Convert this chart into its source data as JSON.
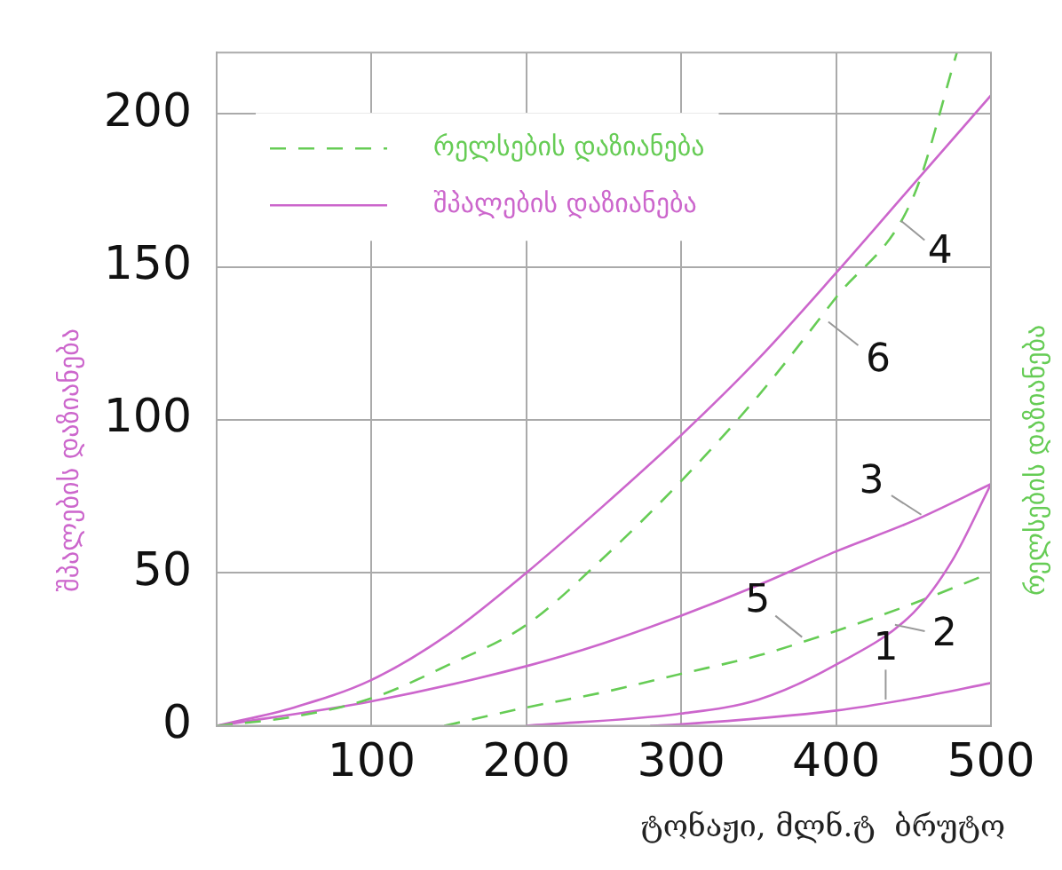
{
  "chart_data": {
    "type": "line",
    "xlabel": "ტონაჟი, მლნ.ტ  ბრუტო",
    "ylabel": "შპალების დაზიანება",
    "y2label": "რელსების დაზიანება",
    "xlim": [
      0,
      500
    ],
    "xticks": [
      100,
      200,
      300,
      400,
      500
    ],
    "ylim": [
      0,
      220
    ],
    "yticks": [
      0,
      50,
      100,
      150,
      200
    ],
    "grid": true,
    "legend": "top left",
    "series": [
      {
        "name": "რელსების დაზიანება",
        "color": "#66cc55",
        "line_style": "dashed",
        "x": [
          0,
          50,
          100,
          150,
          200,
          250,
          300,
          350,
          400,
          450,
          478
        ],
        "values": [
          0,
          3,
          9,
          20,
          33,
          55,
          80,
          108,
          140,
          173,
          220
        ]
      },
      {
        "name": "შპალების დაზიანება",
        "color": "#cc66cc",
        "line_style": "solid",
        "x": [
          0,
          50,
          100,
          150,
          200,
          250,
          300,
          350,
          400,
          450,
          500
        ],
        "values": [
          0,
          6,
          15,
          30,
          50,
          72,
          95,
          120,
          148,
          177,
          206
        ]
      },
      {
        "color": "#cc66cc",
        "line_style": "solid",
        "x": [
          0,
          100,
          200,
          250,
          300,
          350,
          400,
          450,
          500
        ],
        "values": [
          0,
          8,
          19.5,
          27,
          36,
          46,
          57,
          67,
          79
        ]
      },
      {
        "color": "#cc66cc",
        "line_style": "solid",
        "x": [
          200,
          300,
          350,
          400,
          450,
          475,
          500
        ],
        "values": [
          0,
          4,
          8.6,
          20,
          37,
          54,
          79
        ]
      },
      {
        "color": "#cc66cc",
        "line_style": "solid",
        "x": [
          280,
          300,
          400,
          450,
          500
        ],
        "values": [
          0,
          0.5,
          5,
          9,
          14
        ]
      },
      {
        "color": "#66cc55",
        "line_style": "dashed",
        "x": [
          147,
          200,
          250,
          300,
          350,
          400,
          450,
          500
        ],
        "values": [
          0,
          6,
          11,
          17,
          23,
          31,
          40,
          50
        ]
      }
    ],
    "annotations": [
      {
        "text": "4",
        "x": 442,
        "y": 165
      },
      {
        "text": "6",
        "x": 395,
        "y": 132
      },
      {
        "text": "3",
        "x": 455,
        "y": 69
      },
      {
        "text": "5",
        "x": 378,
        "y": 29
      },
      {
        "text": "2",
        "x": 438,
        "y": 33
      },
      {
        "text": "1",
        "x": 432,
        "y": 8.6
      }
    ]
  }
}
